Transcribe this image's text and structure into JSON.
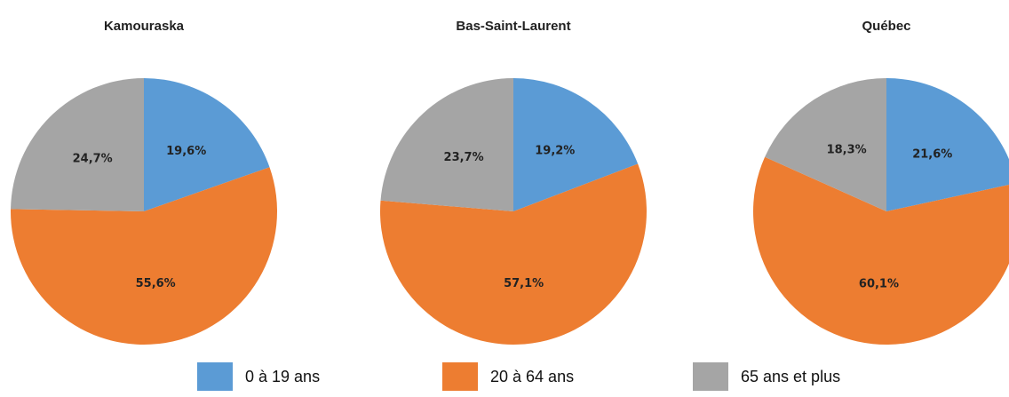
{
  "chart_data": [
    {
      "type": "pie",
      "title": "Kamouraska",
      "categories": [
        "0 à 19 ans",
        "20 à 64 ans",
        "65 ans et plus"
      ],
      "values": [
        19.6,
        55.6,
        24.7
      ],
      "value_labels": [
        "19,6%",
        "55,6%",
        "24,7%"
      ],
      "colors": [
        "#5b9bd5",
        "#ed7d31",
        "#a5a5a5"
      ],
      "legend": "bottom"
    },
    {
      "type": "pie",
      "title": "Bas-Saint-Laurent",
      "categories": [
        "0 à 19 ans",
        "20 à 64 ans",
        "65 ans et plus"
      ],
      "values": [
        19.2,
        57.1,
        23.7
      ],
      "value_labels": [
        "19,2%",
        "57,1%",
        "23,7%"
      ],
      "colors": [
        "#5b9bd5",
        "#ed7d31",
        "#a5a5a5"
      ]
    },
    {
      "type": "pie",
      "title": "Québec",
      "categories": [
        "0 à 19 ans",
        "20 à 64 ans",
        "65 ans et plus"
      ],
      "values": [
        21.6,
        60.1,
        18.3
      ],
      "value_labels": [
        "21,6%",
        "60,1%",
        "18,3%"
      ],
      "colors": [
        "#5b9bd5",
        "#ed7d31",
        "#a5a5a5"
      ]
    }
  ]
}
